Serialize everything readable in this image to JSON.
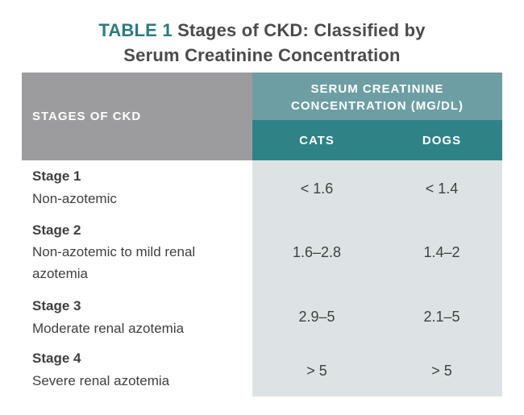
{
  "title": {
    "label": "TABLE 1",
    "line1": "Stages of CKD: Classified by",
    "line2": "Serum Creatinine Concentration"
  },
  "table": {
    "stage_header": "STAGES OF CKD",
    "group_header": "SERUM CREATININE CONCENTRATION (MG/DL)",
    "columns": [
      "CATS",
      "DOGS"
    ],
    "rows": [
      {
        "stage": "Stage 1",
        "description": "Non-azotemic",
        "cats": "< 1.6",
        "dogs": "< 1.4"
      },
      {
        "stage": "Stage 2",
        "description": "Non-azotemic to mild renal azotemia",
        "cats": "1.6–2.8",
        "dogs": "1.4–2"
      },
      {
        "stage": "Stage 3",
        "description": "Moderate renal azotemia",
        "cats": "2.9–5",
        "dogs": "2.1–5"
      },
      {
        "stage": "Stage 4",
        "description": "Severe renal azotemia",
        "cats": "> 5",
        "dogs": "> 5"
      }
    ]
  },
  "colors": {
    "title_label": "#2a7b80",
    "stage_header_bg": "#9c9c9e",
    "group_header_bg": "#6c9ea3",
    "column_header_bg": "#2f8387",
    "values_bg": "#dde3e5"
  }
}
